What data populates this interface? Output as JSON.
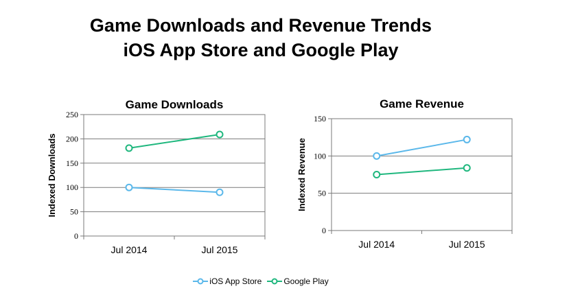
{
  "title": {
    "line1": "Game Downloads and Revenue Trends",
    "line2": "iOS App Store and Google Play"
  },
  "legend": [
    {
      "label": "iOS App Store",
      "color": "#5bb8ea"
    },
    {
      "label": "Google Play",
      "color": "#1fb77e"
    }
  ],
  "chart_data": [
    {
      "type": "line",
      "title": "Game Downloads",
      "xlabel": "",
      "ylabel": "Indexed Downloads",
      "categories": [
        "Jul 2014",
        "Jul 2015"
      ],
      "ylim": [
        0,
        250
      ],
      "yticks": [
        0,
        50,
        100,
        150,
        200,
        250
      ],
      "grid": true,
      "series": [
        {
          "name": "iOS App Store",
          "color": "#5bb8ea",
          "values": [
            100,
            90
          ]
        },
        {
          "name": "Google Play",
          "color": "#1fb77e",
          "values": [
            181,
            209
          ]
        }
      ]
    },
    {
      "type": "line",
      "title": "Game Revenue",
      "xlabel": "",
      "ylabel": "Indexed Revenue",
      "categories": [
        "Jul 2014",
        "Jul 2015"
      ],
      "ylim": [
        0,
        150
      ],
      "yticks": [
        0,
        50,
        100,
        150
      ],
      "grid": true,
      "series": [
        {
          "name": "iOS App Store",
          "color": "#5bb8ea",
          "values": [
            100,
            122
          ]
        },
        {
          "name": "Google Play",
          "color": "#1fb77e",
          "values": [
            75,
            84
          ]
        }
      ]
    }
  ]
}
